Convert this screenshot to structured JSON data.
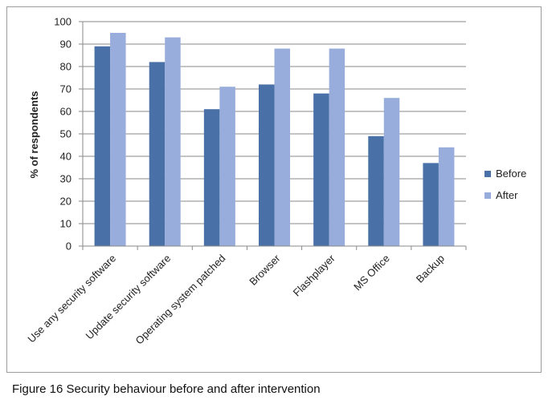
{
  "chart_data": {
    "type": "bar",
    "title": "",
    "xlabel": "",
    "ylabel": "% of respondents",
    "ylim": [
      0,
      100
    ],
    "ytick_step": 10,
    "yticks": [
      "0",
      "10",
      "20",
      "30",
      "40",
      "50",
      "60",
      "70",
      "80",
      "90",
      "100"
    ],
    "grid": true,
    "legend_position": "right",
    "categories": [
      "Use any security software",
      "Update security software",
      "Operating system patched",
      "Browser",
      "Flashplayer",
      "MS Office",
      "Backup"
    ],
    "series": [
      {
        "name": "Before",
        "color": "#4a71a7",
        "values": [
          89,
          82,
          61,
          72,
          68,
          49,
          37
        ]
      },
      {
        "name": "After",
        "color": "#98addb",
        "values": [
          95,
          93,
          71,
          88,
          88,
          66,
          44
        ]
      }
    ]
  },
  "caption": "Figure 16 Security behaviour before and after intervention"
}
